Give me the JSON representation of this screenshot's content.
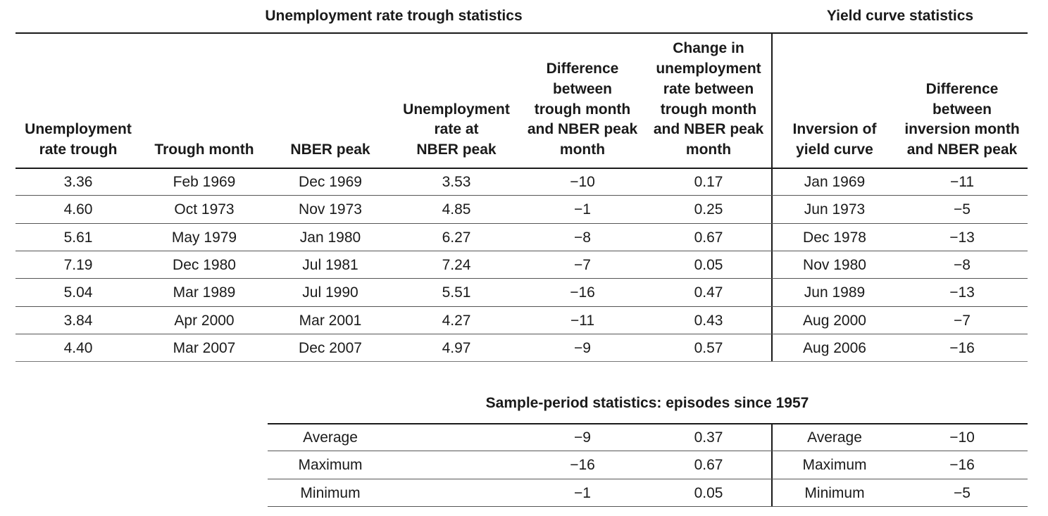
{
  "titles": {
    "unemployment": "Unemployment rate trough statistics",
    "yield": "Yield curve statistics",
    "sample": "Sample-period statistics: episodes since 1957"
  },
  "headers": [
    [
      "Unemployment",
      "rate trough"
    ],
    [
      "Trough month"
    ],
    [
      "NBER peak"
    ],
    [
      "Unemployment",
      "rate at",
      "NBER peak"
    ],
    [
      "Difference",
      "between",
      "trough month",
      "and NBER peak",
      "month"
    ],
    [
      "Change in",
      "unemployment",
      "rate between",
      "trough month",
      "and NBER peak",
      "month"
    ],
    [
      "Inversion of",
      "yield curve"
    ],
    [
      "Difference",
      "between",
      "inversion month",
      "and NBER peak"
    ]
  ],
  "rows": [
    [
      "3.36",
      "Feb 1969",
      "Dec 1969",
      "3.53",
      "−10",
      "0.17",
      "Jan 1969",
      "−11"
    ],
    [
      "4.60",
      "Oct 1973",
      "Nov 1973",
      "4.85",
      "−1",
      "0.25",
      "Jun 1973",
      "−5"
    ],
    [
      "5.61",
      "May 1979",
      "Jan 1980",
      "6.27",
      "−8",
      "0.67",
      "Dec 1978",
      "−13"
    ],
    [
      "7.19",
      "Dec 1980",
      "Jul 1981",
      "7.24",
      "−7",
      "0.05",
      "Nov 1980",
      "−8"
    ],
    [
      "5.04",
      "Mar 1989",
      "Jul 1990",
      "5.51",
      "−16",
      "0.47",
      "Jun 1989",
      "−13"
    ],
    [
      "3.84",
      "Apr 2000",
      "Mar 2001",
      "4.27",
      "−11",
      "0.43",
      "Aug 2000",
      "−7"
    ],
    [
      "4.40",
      "Mar 2007",
      "Dec 2007",
      "4.97",
      "−9",
      "0.57",
      "Aug 2006",
      "−16"
    ]
  ],
  "summary": [
    [
      "Average",
      "−9",
      "0.37",
      "Average",
      "−10"
    ],
    [
      "Maximum",
      "−16",
      "0.67",
      "Maximum",
      "−16"
    ],
    [
      "Minimum",
      "−1",
      "0.05",
      "Minimum",
      "−5"
    ]
  ]
}
